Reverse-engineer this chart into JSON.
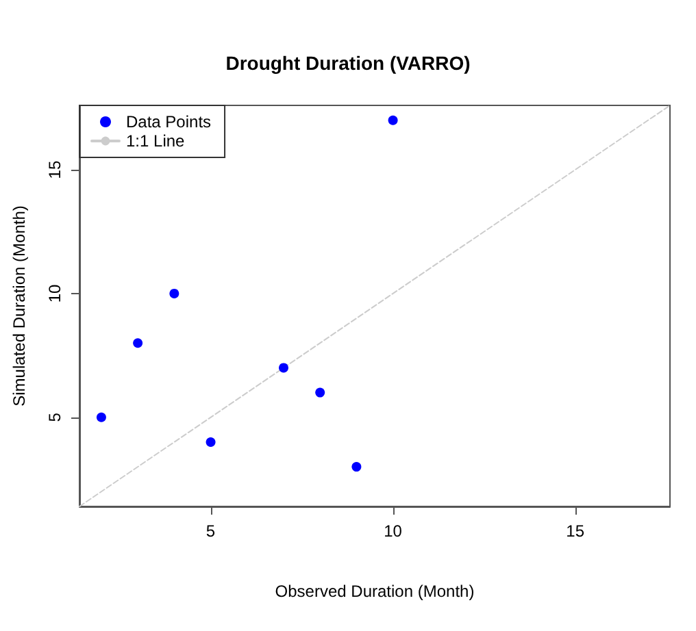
{
  "chart_data": {
    "type": "scatter",
    "title": "Drought Duration (VARRO)",
    "xlabel": "Observed Duration (Month)",
    "ylabel": "Simulated Duration (Month)",
    "x": [
      2,
      3,
      4,
      5,
      7,
      8,
      9,
      10
    ],
    "series": [
      {
        "name": "Data Points",
        "color": "#0000ff",
        "marker": "circle",
        "values": [
          5,
          8,
          10,
          4,
          7,
          6,
          3,
          17
        ]
      },
      {
        "name": "1:1 Line",
        "type": "line",
        "color": "#cccccc",
        "line_style": "dashed",
        "marker": "none",
        "x": [
          1.4,
          17.6
        ],
        "values": [
          1.4,
          17.6
        ]
      }
    ],
    "xlim": [
      1.4,
      17.6
    ],
    "ylim": [
      1.4,
      17.6
    ],
    "xticks": [
      5,
      10,
      15
    ],
    "yticks": [
      5,
      10,
      15
    ],
    "grid": false,
    "legend": "top left"
  }
}
